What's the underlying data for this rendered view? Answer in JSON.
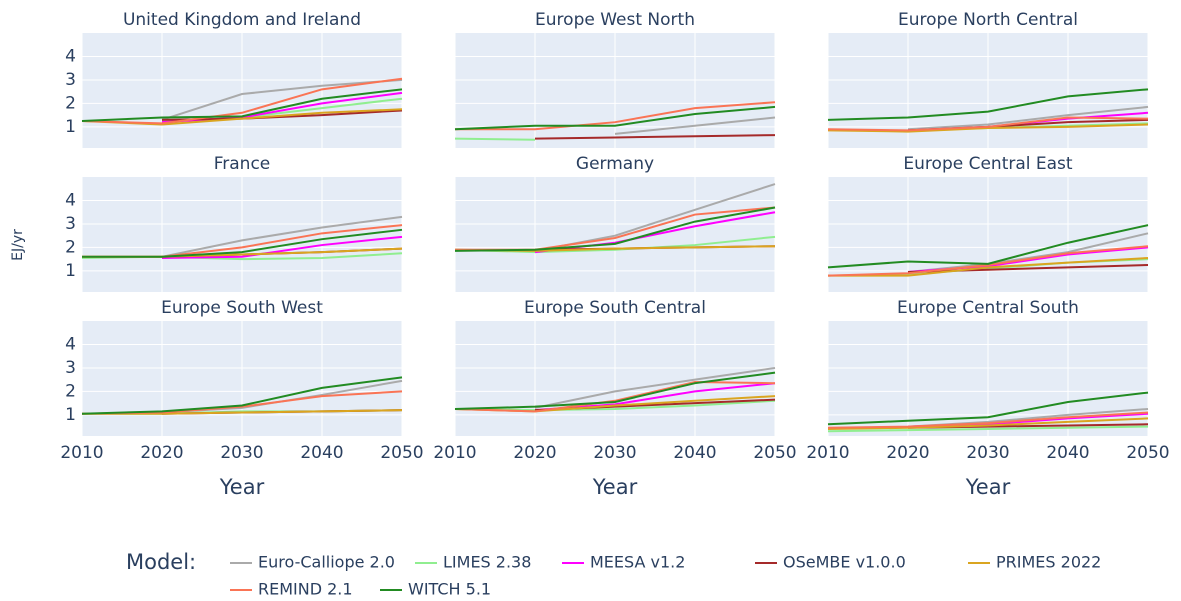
{
  "chart_data": {
    "type": "line",
    "y_label": "EJ/yr",
    "x_label": "Year",
    "legend_title": "Model:",
    "x": [
      2010,
      2020,
      2030,
      2040,
      2050
    ],
    "xlim": [
      2010,
      2050
    ],
    "xticks": [
      2010,
      2020,
      2030,
      2040,
      2050
    ],
    "ylim": [
      0.1,
      5
    ],
    "yticks": [
      1,
      2,
      3,
      4
    ],
    "grid": true,
    "series": [
      {
        "name": "Euro-Calliope 2.0",
        "color": "#aaaaaa"
      },
      {
        "name": "LIMES 2.38",
        "color": "#90ee90"
      },
      {
        "name": "MEESA v1.2",
        "color": "#ff00ff"
      },
      {
        "name": "OSeMBE v1.0.0",
        "color": "#a52a2a"
      },
      {
        "name": "PRIMES 2022",
        "color": "#daa520"
      },
      {
        "name": "REMIND 2.1",
        "color": "#fa7455"
      },
      {
        "name": "WITCH 5.1",
        "color": "#228b22"
      }
    ],
    "panels": [
      {
        "title": "United Kingdom and Ireland",
        "values": [
          [
            null,
            1.3,
            2.4,
            2.75,
            3.0
          ],
          [
            null,
            1.2,
            1.4,
            1.8,
            2.2
          ],
          [
            null,
            1.2,
            1.4,
            2.0,
            2.45
          ],
          [
            null,
            1.3,
            1.35,
            1.5,
            1.7
          ],
          [
            1.25,
            1.1,
            1.35,
            1.6,
            1.75
          ],
          [
            1.25,
            1.15,
            1.6,
            2.6,
            3.05
          ],
          [
            1.25,
            1.4,
            1.45,
            2.2,
            2.6
          ]
        ]
      },
      {
        "title": "Europe West North",
        "values": [
          [
            null,
            null,
            0.7,
            1.05,
            1.4
          ],
          [
            0.5,
            0.45,
            null,
            null,
            null
          ],
          [
            null,
            null,
            null,
            null,
            null
          ],
          [
            null,
            0.5,
            0.55,
            0.6,
            0.65
          ],
          [
            null,
            null,
            null,
            null,
            null
          ],
          [
            0.9,
            0.9,
            1.2,
            1.8,
            2.05
          ],
          [
            0.9,
            1.05,
            1.05,
            1.55,
            1.85
          ]
        ]
      },
      {
        "title": "Europe North Central",
        "values": [
          [
            null,
            0.9,
            1.1,
            1.5,
            1.85
          ],
          [
            null,
            0.85,
            0.95,
            1.05,
            1.15
          ],
          [
            null,
            0.85,
            1.0,
            1.35,
            1.6
          ],
          [
            null,
            0.85,
            1.0,
            1.2,
            1.3
          ],
          [
            0.85,
            0.8,
            0.95,
            1.0,
            1.1
          ],
          [
            0.9,
            0.85,
            1.0,
            1.4,
            1.35
          ],
          [
            1.3,
            1.4,
            1.65,
            2.3,
            2.6
          ]
        ]
      },
      {
        "title": "France",
        "values": [
          [
            null,
            1.6,
            2.3,
            2.85,
            3.3
          ],
          [
            1.55,
            1.6,
            1.5,
            1.55,
            1.75
          ],
          [
            null,
            1.55,
            1.6,
            2.1,
            2.45
          ],
          [
            null,
            1.6,
            1.7,
            1.8,
            1.95
          ],
          [
            1.6,
            1.6,
            1.7,
            1.8,
            1.95
          ],
          [
            1.6,
            1.6,
            2.0,
            2.6,
            2.95
          ],
          [
            1.6,
            1.6,
            1.8,
            2.35,
            2.75
          ]
        ]
      },
      {
        "title": "Germany",
        "values": [
          [
            null,
            1.85,
            2.5,
            3.6,
            4.7
          ],
          [
            1.9,
            1.8,
            1.9,
            2.1,
            2.45
          ],
          [
            null,
            1.8,
            2.2,
            2.9,
            3.5
          ],
          [
            null,
            1.9,
            1.95,
            2.0,
            2.05
          ],
          [
            1.9,
            1.85,
            1.95,
            2.0,
            2.05
          ],
          [
            1.9,
            1.9,
            2.4,
            3.4,
            3.7
          ],
          [
            1.85,
            1.9,
            2.15,
            3.1,
            3.7
          ]
        ]
      },
      {
        "title": "Europe Central East",
        "values": [
          [
            null,
            0.95,
            1.3,
            1.8,
            2.6
          ],
          [
            0.8,
            0.85,
            1.1,
            1.35,
            1.5
          ],
          [
            null,
            0.95,
            1.2,
            1.7,
            2.0
          ],
          [
            null,
            0.95,
            1.05,
            1.15,
            1.25
          ],
          [
            0.8,
            0.8,
            1.15,
            1.35,
            1.55
          ],
          [
            0.8,
            0.9,
            1.25,
            1.75,
            2.05
          ],
          [
            1.15,
            1.4,
            1.3,
            2.2,
            2.95
          ]
        ]
      },
      {
        "title": "Europe South West",
        "values": [
          [
            null,
            1.1,
            1.3,
            1.85,
            2.45
          ],
          [
            1.05,
            1.05,
            1.15,
            1.15,
            1.2
          ],
          [
            null,
            null,
            null,
            null,
            null
          ],
          [
            null,
            1.05,
            1.1,
            1.15,
            1.2
          ],
          [
            1.05,
            1.05,
            1.1,
            1.15,
            1.2
          ],
          [
            1.05,
            1.1,
            1.35,
            1.8,
            2.0
          ],
          [
            1.05,
            1.15,
            1.4,
            2.15,
            2.6
          ]
        ]
      },
      {
        "title": "Europe South Central",
        "values": [
          [
            null,
            1.3,
            2.0,
            2.5,
            3.0
          ],
          [
            1.25,
            1.2,
            1.25,
            1.4,
            1.6
          ],
          [
            null,
            1.2,
            1.45,
            2.0,
            2.35
          ],
          [
            null,
            1.2,
            1.35,
            1.5,
            1.65
          ],
          [
            1.25,
            1.15,
            1.4,
            1.6,
            1.8
          ],
          [
            1.25,
            1.15,
            1.6,
            2.4,
            2.35
          ],
          [
            1.25,
            1.35,
            1.55,
            2.35,
            2.8
          ]
        ]
      },
      {
        "title": "Europe Central South",
        "values": [
          [
            null,
            0.5,
            0.7,
            1.0,
            1.25
          ],
          [
            0.3,
            0.35,
            0.4,
            0.45,
            0.5
          ],
          [
            null,
            0.5,
            0.6,
            0.85,
            1.05
          ],
          [
            null,
            0.45,
            0.5,
            0.55,
            0.6
          ],
          [
            0.4,
            0.45,
            0.55,
            0.7,
            0.85
          ],
          [
            0.45,
            0.5,
            0.65,
            0.9,
            1.1
          ],
          [
            0.6,
            0.75,
            0.9,
            1.55,
            1.95
          ]
        ]
      }
    ]
  }
}
